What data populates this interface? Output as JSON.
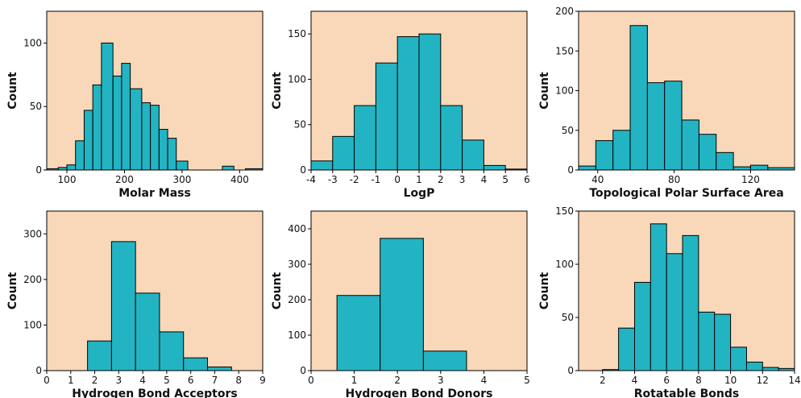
{
  "colors": {
    "bar": "#23b4c3",
    "bar_edge": "#000000",
    "plot_bg": "#f8d8b8"
  },
  "chart_data": [
    {
      "type": "bar",
      "xlabel": "Molar Mass",
      "ylabel": "Count",
      "xlim": [
        65,
        440
      ],
      "ylim": [
        0,
        125
      ],
      "xticks": [
        100,
        200,
        300,
        400
      ],
      "yticks": [
        0,
        50,
        100
      ],
      "bins": [
        [
          65,
          85,
          1
        ],
        [
          85,
          100,
          2
        ],
        [
          100,
          115,
          4
        ],
        [
          115,
          130,
          23
        ],
        [
          130,
          145,
          47
        ],
        [
          145,
          160,
          67
        ],
        [
          160,
          180,
          100
        ],
        [
          180,
          195,
          74
        ],
        [
          195,
          210,
          84
        ],
        [
          210,
          230,
          64
        ],
        [
          230,
          245,
          53
        ],
        [
          245,
          260,
          51
        ],
        [
          260,
          275,
          32
        ],
        [
          275,
          290,
          25
        ],
        [
          290,
          310,
          7
        ],
        [
          310,
          330,
          0
        ],
        [
          330,
          350,
          0
        ],
        [
          350,
          370,
          0
        ],
        [
          370,
          390,
          3
        ],
        [
          390,
          410,
          0
        ],
        [
          410,
          440,
          1
        ]
      ]
    },
    {
      "type": "bar",
      "xlabel": "LogP",
      "ylabel": "Count",
      "xlim": [
        -4,
        6
      ],
      "ylim": [
        0,
        175
      ],
      "xticks": [
        -4,
        -3,
        -2,
        -1,
        0,
        1,
        2,
        3,
        4,
        5,
        6
      ],
      "yticks": [
        0,
        50,
        100,
        150
      ],
      "bins": [
        [
          -4,
          -3,
          10
        ],
        [
          -3,
          -2,
          37
        ],
        [
          -2,
          -1,
          71
        ],
        [
          -1,
          0,
          118
        ],
        [
          0,
          1,
          147
        ],
        [
          1,
          2,
          150
        ],
        [
          2,
          3,
          71
        ],
        [
          3,
          4,
          33
        ],
        [
          4,
          5,
          5
        ],
        [
          5,
          6,
          1
        ]
      ]
    },
    {
      "type": "bar",
      "xlabel": "Topological Polar Surface Area",
      "ylabel": "Count",
      "xlim": [
        30,
        143
      ],
      "ylim": [
        0,
        200
      ],
      "xticks": [
        40,
        80,
        120
      ],
      "yticks": [
        0,
        50,
        100,
        150,
        200
      ],
      "bins": [
        [
          30,
          39,
          5
        ],
        [
          39,
          48,
          37
        ],
        [
          48,
          57,
          50
        ],
        [
          57,
          66,
          182
        ],
        [
          66,
          75,
          110
        ],
        [
          75,
          84,
          112
        ],
        [
          84,
          93,
          63
        ],
        [
          93,
          102,
          45
        ],
        [
          102,
          111,
          22
        ],
        [
          111,
          120,
          4
        ],
        [
          120,
          129,
          6
        ],
        [
          129,
          143,
          3
        ]
      ]
    },
    {
      "type": "bar",
      "xlabel": "Hydrogen Bond Acceptors",
      "ylabel": "Count",
      "xlim": [
        0,
        9
      ],
      "ylim": [
        0,
        350
      ],
      "xticks": [
        0,
        1,
        2,
        3,
        4,
        5,
        6,
        7,
        8,
        9
      ],
      "yticks": [
        0,
        100,
        200,
        300
      ],
      "bins": [
        [
          1.7,
          2.7,
          65
        ],
        [
          2.7,
          3.7,
          283
        ],
        [
          3.7,
          4.7,
          170
        ],
        [
          4.7,
          5.7,
          85
        ],
        [
          5.7,
          6.7,
          28
        ],
        [
          6.7,
          7.7,
          8
        ]
      ]
    },
    {
      "type": "bar",
      "xlabel": "Hydrogen Bond Donors",
      "ylabel": "Count",
      "xlim": [
        0,
        5
      ],
      "ylim": [
        0,
        450
      ],
      "xticks": [
        0,
        1,
        2,
        3,
        4,
        5
      ],
      "yticks": [
        0,
        100,
        200,
        300,
        400
      ],
      "bins": [
        [
          0.6,
          1.6,
          212
        ],
        [
          1.6,
          2.6,
          373
        ],
        [
          2.6,
          3.6,
          55
        ]
      ]
    },
    {
      "type": "bar",
      "xlabel": "Rotatable Bonds",
      "ylabel": "Count",
      "xlim": [
        0.5,
        14
      ],
      "ylim": [
        0,
        150
      ],
      "xticks": [
        2,
        4,
        6,
        8,
        10,
        12,
        14
      ],
      "yticks": [
        0,
        50,
        100,
        150
      ],
      "bins": [
        [
          2,
          3,
          1
        ],
        [
          3,
          4,
          40
        ],
        [
          4,
          5,
          83
        ],
        [
          5,
          6,
          138
        ],
        [
          6,
          7,
          110
        ],
        [
          7,
          8,
          127
        ],
        [
          8,
          9,
          55
        ],
        [
          9,
          10,
          53
        ],
        [
          10,
          11,
          22
        ],
        [
          11,
          12,
          8
        ],
        [
          12,
          13,
          3
        ],
        [
          13,
          14,
          2
        ]
      ]
    }
  ]
}
